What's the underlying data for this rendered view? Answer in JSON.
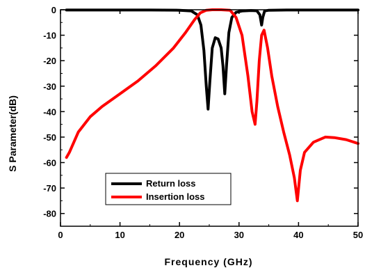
{
  "chart_data": {
    "type": "line",
    "title": "",
    "xlabel": "Frequency (GHz)",
    "ylabel": "S Parameter(dB)",
    "xlim": [
      0,
      50
    ],
    "ylim": [
      -85,
      0
    ],
    "xticks": [
      0,
      10,
      20,
      30,
      40,
      50
    ],
    "yticks": [
      0,
      -10,
      -20,
      -30,
      -40,
      -50,
      -60,
      -70,
      -80
    ],
    "grid": false,
    "legend": "bottom-left",
    "series": [
      {
        "name": "Return loss",
        "color": "#000000",
        "x": [
          1,
          5,
          10,
          15,
          20,
          22,
          23,
          23.6,
          24.1,
          24.5,
          24.8,
          25.1,
          25.5,
          26,
          26.5,
          27,
          27.3,
          27.6,
          27.9,
          28.3,
          28.8,
          29.5,
          30.5,
          32,
          33,
          33.5,
          33.8,
          34,
          34.3,
          35,
          38,
          42,
          46,
          50
        ],
        "y": [
          -0.1,
          -0.1,
          -0.1,
          -0.1,
          -0.2,
          -0.5,
          -2,
          -6,
          -16,
          -30,
          -39,
          -28,
          -15,
          -11,
          -11.5,
          -15,
          -22,
          -33,
          -22,
          -9,
          -3,
          -1,
          -0.5,
          -0.3,
          -0.4,
          -2,
          -6,
          -3,
          -0.5,
          -0.2,
          -0.1,
          -0.1,
          -0.1,
          -0.1
        ]
      },
      {
        "name": "Insertion loss",
        "color": "#ff0000",
        "x": [
          1,
          1.5,
          3,
          5,
          7,
          10,
          13,
          16,
          19,
          21,
          22.5,
          23.5,
          24.5,
          25.5,
          27,
          28.5,
          29.5,
          30.5,
          31.5,
          32.2,
          32.7,
          33,
          33.4,
          33.8,
          34.2,
          34.8,
          35.5,
          36.5,
          37.5,
          38.5,
          39.3,
          39.8,
          40.3,
          41,
          42.5,
          44.5,
          46,
          48,
          50
        ],
        "y": [
          -58,
          -56,
          -48,
          -42,
          -38,
          -33,
          -28,
          -22,
          -15,
          -9,
          -4,
          -1.2,
          -0.2,
          0,
          0,
          -0.2,
          -3,
          -10,
          -26,
          -40,
          -45,
          -36,
          -20,
          -10,
          -8,
          -15,
          -26,
          -38,
          -48,
          -57,
          -66,
          -75,
          -63,
          -56,
          -52,
          -50,
          -50.2,
          -51,
          -52.5
        ]
      }
    ]
  }
}
